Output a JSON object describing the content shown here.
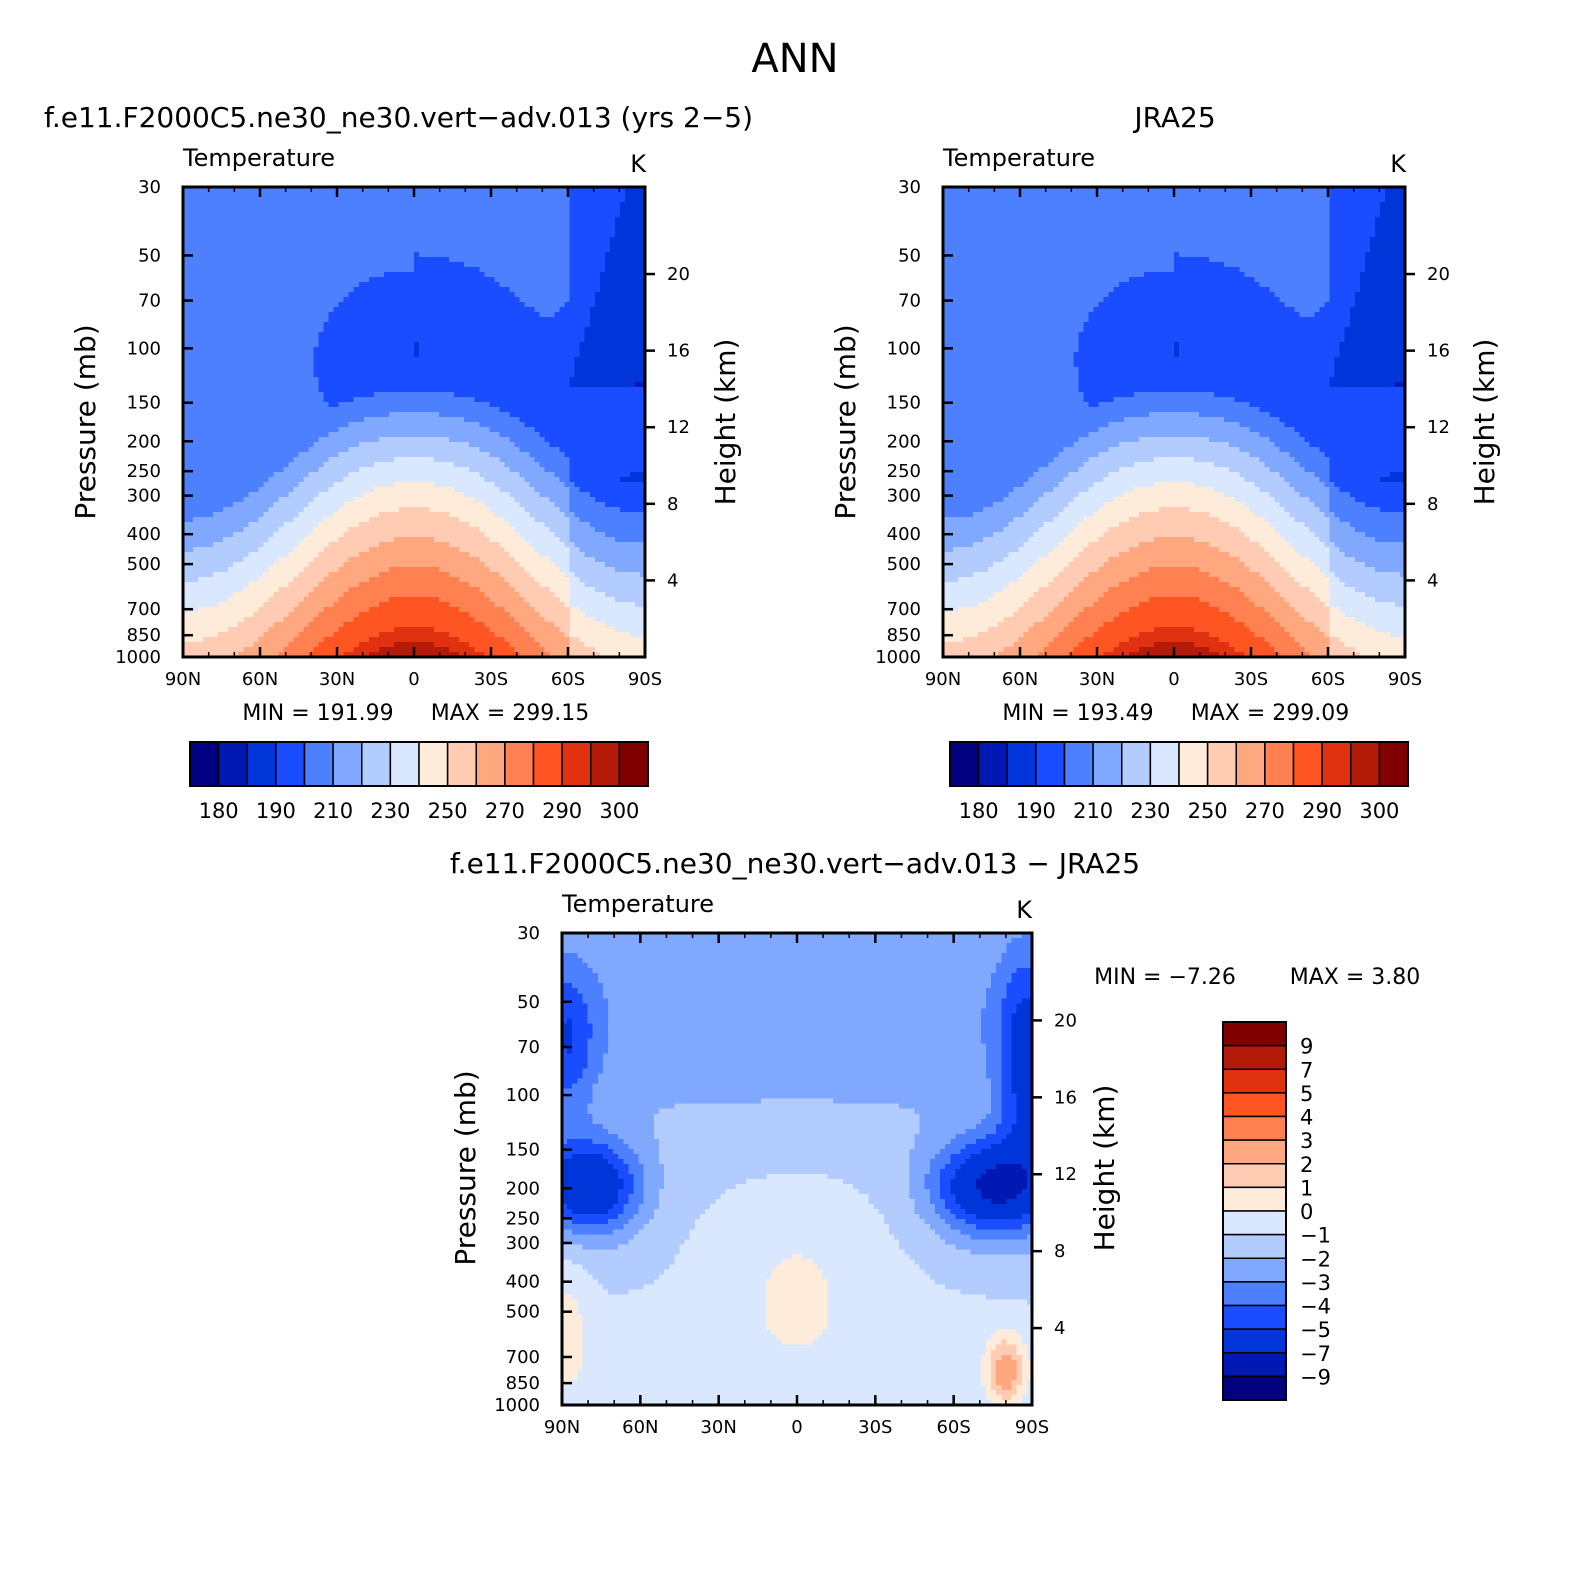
{
  "figure": {
    "title": "ANN"
  },
  "palettes": {
    "abs": [
      "#000080",
      "#0019b2",
      "#0035d9",
      "#1a4dff",
      "#4d80ff",
      "#80a8ff",
      "#b3ccff",
      "#d9e8ff",
      "#ffebd9",
      "#ffccb3",
      "#ffa880",
      "#ff8050",
      "#ff5522",
      "#e03210",
      "#b31a08",
      "#800000"
    ],
    "diff": [
      "#000080",
      "#0019b2",
      "#0035d9",
      "#1a4dff",
      "#4d80ff",
      "#80a8ff",
      "#b3ccff",
      "#d9e8ff",
      "#ffebd9",
      "#ffccb3",
      "#ffa880",
      "#ff8050",
      "#ff5522",
      "#e03210",
      "#b31a08",
      "#800000"
    ]
  },
  "chart_data": [
    {
      "type": "heatmap",
      "title": "f.e11.F2000C5.ne30_ne30.vert−adv.013 (yrs 2−5)",
      "subtitle_left": "Temperature",
      "subtitle_right": "K",
      "ylabel": "Pressure (mb)",
      "ylabel_right": "Height (km)",
      "x_ticks": [
        "90N",
        "60N",
        "30N",
        "0",
        "30S",
        "60S",
        "90S"
      ],
      "x_values": [
        90,
        60,
        30,
        0,
        -30,
        -60,
        -90
      ],
      "y_ticks": [
        30,
        50,
        70,
        100,
        150,
        200,
        250,
        300,
        400,
        500,
        700,
        850,
        1000
      ],
      "y_log": true,
      "height_ticks": [
        20,
        16,
        12,
        8,
        4
      ],
      "min_label": "MIN = 191.99",
      "max_label": "MAX = 299.15",
      "min": 191.99,
      "max": 299.15,
      "colorbar": {
        "orientation": "horizontal",
        "labels": [
          "180",
          "190",
          "210",
          "230",
          "250",
          "270",
          "290",
          "300"
        ]
      }
    },
    {
      "type": "heatmap",
      "title": "JRA25",
      "subtitle_left": "Temperature",
      "subtitle_right": "K",
      "ylabel": "Pressure (mb)",
      "ylabel_right": "Height (km)",
      "x_ticks": [
        "90N",
        "60N",
        "30N",
        "0",
        "30S",
        "60S",
        "90S"
      ],
      "x_values": [
        90,
        60,
        30,
        0,
        -30,
        -60,
        -90
      ],
      "y_ticks": [
        30,
        50,
        70,
        100,
        150,
        200,
        250,
        300,
        400,
        500,
        700,
        850,
        1000
      ],
      "y_log": true,
      "height_ticks": [
        20,
        16,
        12,
        8,
        4
      ],
      "min_label": "MIN = 193.49",
      "max_label": "MAX = 299.09",
      "min": 193.49,
      "max": 299.09,
      "colorbar": {
        "orientation": "horizontal",
        "labels": [
          "180",
          "190",
          "210",
          "230",
          "250",
          "270",
          "290",
          "300"
        ]
      }
    },
    {
      "type": "heatmap",
      "title": "f.e11.F2000C5.ne30_ne30.vert−adv.013 − JRA25",
      "subtitle_left": "Temperature",
      "subtitle_right": "K",
      "ylabel": "Pressure (mb)",
      "ylabel_right": "Height (km)",
      "x_ticks": [
        "90N",
        "60N",
        "30N",
        "0",
        "30S",
        "60S",
        "90S"
      ],
      "x_values": [
        90,
        60,
        30,
        0,
        -30,
        -60,
        -90
      ],
      "y_ticks": [
        30,
        50,
        70,
        100,
        150,
        200,
        250,
        300,
        400,
        500,
        700,
        850,
        1000
      ],
      "y_log": true,
      "height_ticks": [
        20,
        16,
        12,
        8,
        4
      ],
      "min_label": "MIN =   −7.26",
      "max_label": "MAX =    3.80",
      "min": -7.26,
      "max": 3.8,
      "colorbar": {
        "orientation": "vertical",
        "labels": [
          "9",
          "7",
          "5",
          "4",
          "3",
          "2",
          "1",
          "0",
          "−1",
          "−2",
          "−3",
          "−4",
          "−5",
          "−7",
          "−9"
        ]
      }
    }
  ]
}
